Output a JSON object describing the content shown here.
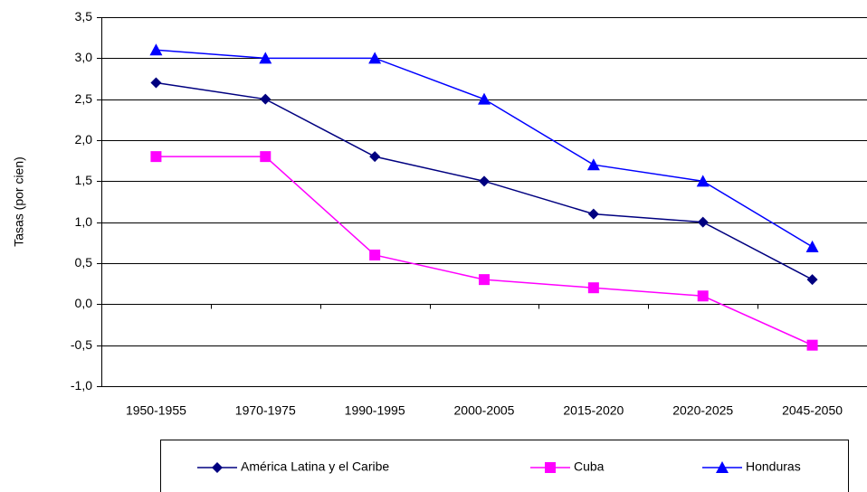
{
  "chart_data": {
    "type": "line",
    "y_label": "Tasas (por cien)",
    "categories": [
      "1950-1955",
      "1970-1975",
      "1990-1995",
      "2000-2005",
      "2015-2020",
      "2020-2025",
      "2045-2050"
    ],
    "series": [
      {
        "name": "América Latina y el Caribe",
        "color": "#000080",
        "marker": "diamond",
        "values": [
          2.7,
          2.5,
          1.8,
          1.5,
          1.1,
          1.0,
          0.3
        ]
      },
      {
        "name": "Cuba",
        "color": "#ff00ff",
        "marker": "square",
        "values": [
          1.8,
          1.8,
          0.6,
          0.3,
          0.2,
          0.1,
          -0.5
        ]
      },
      {
        "name": "Honduras",
        "color": "#0000ff",
        "marker": "triangle",
        "values": [
          3.1,
          3.0,
          3.0,
          2.5,
          1.7,
          1.5,
          0.7
        ]
      }
    ],
    "ylim": [
      -1.0,
      3.5
    ],
    "yticks": [
      {
        "value": -1.0,
        "label": "-1,0"
      },
      {
        "value": -0.5,
        "label": "-0,5"
      },
      {
        "value": 0.0,
        "label": "0,0"
      },
      {
        "value": 0.5,
        "label": "0,5"
      },
      {
        "value": 1.0,
        "label": "1,0"
      },
      {
        "value": 1.5,
        "label": "1,5"
      },
      {
        "value": 2.0,
        "label": "2,0"
      },
      {
        "value": 2.5,
        "label": "2,5"
      },
      {
        "value": 3.0,
        "label": "3,0"
      },
      {
        "value": 3.5,
        "label": "3,5"
      }
    ],
    "grid": true,
    "legend": "bottom"
  }
}
